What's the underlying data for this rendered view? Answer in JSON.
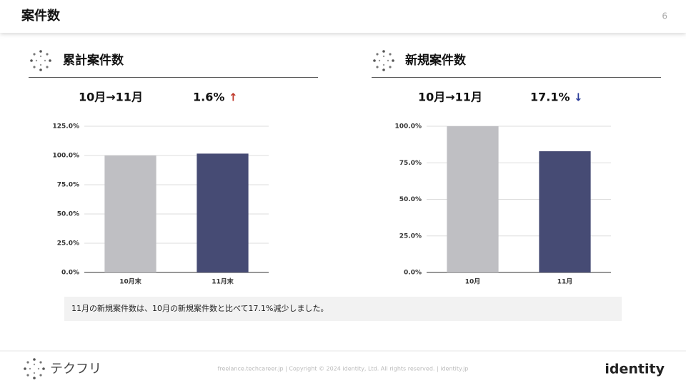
{
  "header": {
    "title": "案件数",
    "page": "6"
  },
  "sections": [
    {
      "title": "累計案件数",
      "period": "10月→11月",
      "change": "1.6%",
      "arrow": "↑"
    },
    {
      "title": "新規案件数",
      "period": "10月→11月",
      "change": "17.1%",
      "arrow": "↓"
    }
  ],
  "chart_data": [
    {
      "type": "bar",
      "categories": [
        "10月末",
        "11月末"
      ],
      "values": [
        100,
        101.6
      ],
      "colors": [
        "#bfbfc3",
        "#464b74"
      ],
      "ylim": [
        0,
        125
      ],
      "yticks": [
        {
          "value": 0,
          "label": "0.0%"
        },
        {
          "value": 25,
          "label": "25.0%"
        },
        {
          "value": 50,
          "label": "50.0%"
        },
        {
          "value": 75,
          "label": "75.0%"
        },
        {
          "value": 100,
          "label": "100.0%"
        },
        {
          "value": 125,
          "label": "125.0%"
        }
      ],
      "grid": true
    },
    {
      "type": "bar",
      "categories": [
        "10月",
        "11月"
      ],
      "values": [
        100,
        82.9
      ],
      "colors": [
        "#bfbfc3",
        "#464b74"
      ],
      "ylim": [
        0,
        100
      ],
      "yticks": [
        {
          "value": 0,
          "label": "0.0%"
        },
        {
          "value": 25,
          "label": "25.0%"
        },
        {
          "value": 50,
          "label": "50.0%"
        },
        {
          "value": 75,
          "label": "75.0%"
        },
        {
          "value": 100,
          "label": "100.0%"
        }
      ],
      "grid": true
    }
  ],
  "note": "11月の新規案件数は、10月の新規案件数と比べて17.1%減少しました。",
  "footer": {
    "brand": "テクフリ",
    "copyright": "freelance.techcareer.jp | Copyright © 2024 identity, Ltd. All rights reserved. | identity.jp",
    "logo": "identity"
  }
}
